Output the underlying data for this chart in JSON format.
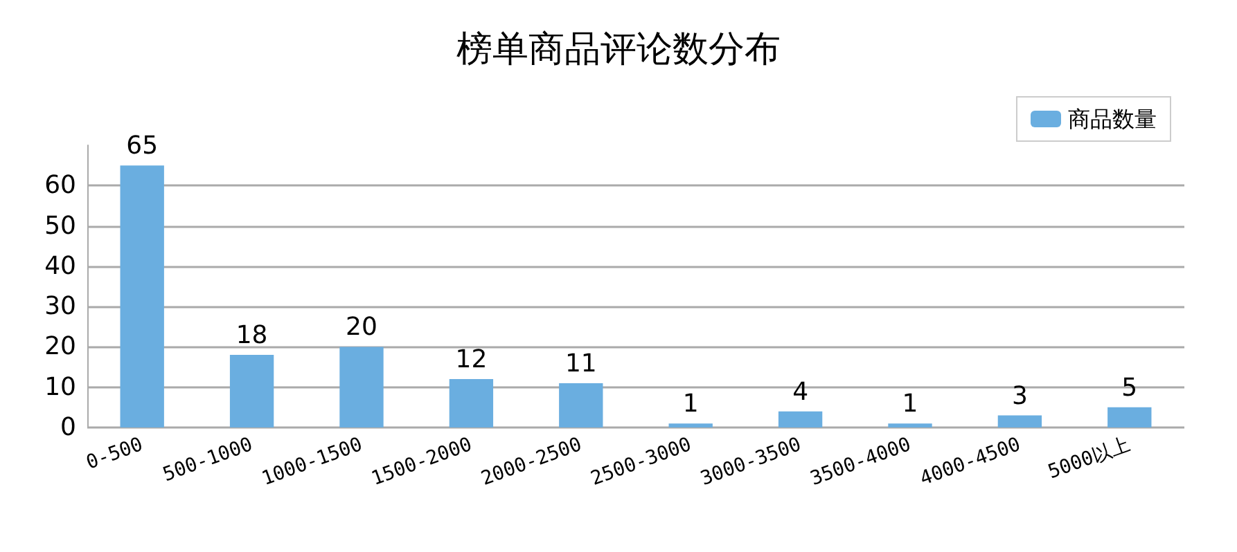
{
  "chart_data": {
    "type": "bar",
    "title": "榜单商品评论数分布",
    "categories": [
      "0-500",
      "500-1000",
      "1000-1500",
      "1500-2000",
      "2000-2500",
      "2500-3000",
      "3000-3500",
      "3500-4000",
      "4000-4500",
      "5000以上"
    ],
    "series": [
      {
        "name": "商品数量",
        "color": "#6aaee0",
        "values": [
          65,
          18,
          20,
          12,
          11,
          1,
          4,
          1,
          3,
          5
        ]
      }
    ],
    "ylim": [
      0,
      70
    ],
    "yticks": [
      0,
      10,
      20,
      30,
      40,
      50,
      60
    ],
    "grid": "y",
    "legend": "top right",
    "data_labels": true
  }
}
